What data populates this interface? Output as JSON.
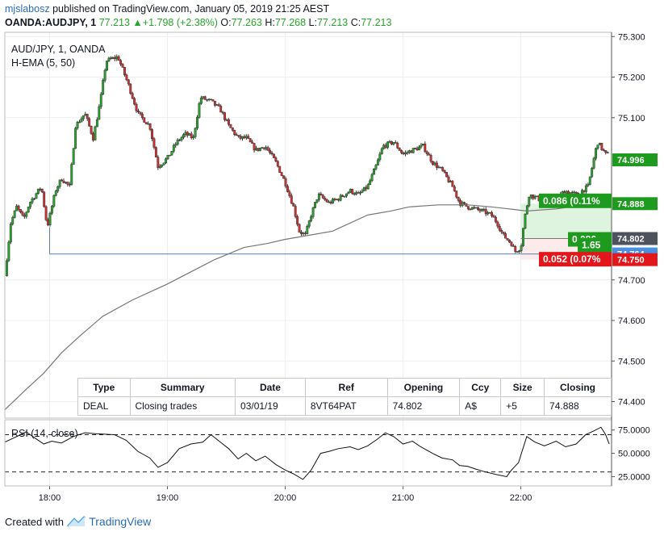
{
  "header": {
    "author": "mjslabosz",
    "published_text": "published on TradingView.com, January 05, 2019 21:25 AEST",
    "symbol": "OANDA:AUDJPY, 1",
    "last": "77.213",
    "change": "+1.798 (+2.38%)",
    "o_label": "O:",
    "o_value": "77.263",
    "h_label": "H:",
    "h_value": "77.268",
    "l_label": "L:",
    "l_value": "77.213",
    "c_label": "C:",
    "c_value": "77.213"
  },
  "legend": {
    "symbol": "AUD/JPY, 1, OANDA",
    "indicator": "H-EMA (5, 50)",
    "rsi": "RSI (14, close)"
  },
  "colors": {
    "up": "#26a62a",
    "down": "#d32f2f",
    "candle_outline": "#333333",
    "ema": "#777777",
    "trend_line": "#5b7fb0",
    "grid": "#eceff2",
    "green_label": "#1e9b1e",
    "red_label": "#e3161b",
    "blue_label": "#4a90e2",
    "grey_label": "#4c525e"
  },
  "chart_data": [
    {
      "type": "candlestick",
      "title": "AUD/JPY, 1, OANDA",
      "x": "time",
      "x_ticks": [
        "18:00",
        "19:00",
        "20:00",
        "21:00",
        "22:00"
      ],
      "y_ticks": [
        "75.300",
        "75.200",
        "75.100",
        "74.700",
        "74.600",
        "74.500",
        "74.400"
      ],
      "ylim": [
        74.3592,
        75.3105
      ],
      "close_path": [
        [
          17.62,
          74.71
        ],
        [
          17.67,
          74.84
        ],
        [
          17.72,
          74.88
        ],
        [
          17.78,
          74.85
        ],
        [
          17.83,
          74.89
        ],
        [
          17.93,
          74.93
        ],
        [
          17.98,
          74.83
        ],
        [
          18.05,
          74.92
        ],
        [
          18.1,
          74.95
        ],
        [
          18.17,
          74.93
        ],
        [
          18.22,
          75.08
        ],
        [
          18.3,
          75.11
        ],
        [
          18.37,
          75.05
        ],
        [
          18.43,
          75.14
        ],
        [
          18.48,
          75.24
        ],
        [
          18.58,
          75.25
        ],
        [
          18.67,
          75.18
        ],
        [
          18.75,
          75.11
        ],
        [
          18.85,
          75.08
        ],
        [
          18.92,
          74.98
        ],
        [
          19.0,
          75.0
        ],
        [
          19.08,
          75.04
        ],
        [
          19.15,
          75.06
        ],
        [
          19.22,
          75.05
        ],
        [
          19.28,
          75.15
        ],
        [
          19.37,
          75.14
        ],
        [
          19.45,
          75.12
        ],
        [
          19.52,
          75.08
        ],
        [
          19.6,
          75.05
        ],
        [
          19.67,
          75.05
        ],
        [
          19.75,
          75.02
        ],
        [
          19.83,
          75.03
        ],
        [
          19.92,
          74.99
        ],
        [
          20.0,
          74.94
        ],
        [
          20.07,
          74.88
        ],
        [
          20.12,
          74.82
        ],
        [
          20.17,
          74.81
        ],
        [
          20.22,
          74.86
        ],
        [
          20.28,
          74.91
        ],
        [
          20.37,
          74.89
        ],
        [
          20.45,
          74.9
        ],
        [
          20.55,
          74.92
        ],
        [
          20.62,
          74.91
        ],
        [
          20.7,
          74.93
        ],
        [
          20.77,
          74.98
        ],
        [
          20.83,
          75.03
        ],
        [
          20.92,
          75.04
        ],
        [
          21.0,
          75.01
        ],
        [
          21.08,
          75.02
        ],
        [
          21.17,
          75.03
        ],
        [
          21.25,
          74.99
        ],
        [
          21.33,
          74.97
        ],
        [
          21.42,
          74.93
        ],
        [
          21.48,
          74.89
        ],
        [
          21.55,
          74.88
        ],
        [
          21.67,
          74.87
        ],
        [
          21.75,
          74.86
        ],
        [
          21.8,
          74.84
        ],
        [
          21.85,
          74.81
        ],
        [
          21.92,
          74.79
        ],
        [
          21.95,
          74.77
        ],
        [
          22.0,
          74.78
        ],
        [
          22.03,
          74.85
        ],
        [
          22.07,
          74.91
        ],
        [
          22.15,
          74.9
        ],
        [
          22.22,
          74.88
        ],
        [
          22.28,
          74.89
        ],
        [
          22.37,
          74.92
        ],
        [
          22.47,
          74.91
        ],
        [
          22.57,
          74.93
        ],
        [
          22.65,
          75.04
        ],
        [
          22.72,
          75.01
        ]
      ],
      "series": [
        {
          "name": "H-EMA (5, 50)",
          "type": "line",
          "points": [
            [
              17.62,
              74.38
            ],
            [
              17.8,
              74.43
            ],
            [
              17.95,
              74.47
            ],
            [
              18.1,
              74.52
            ],
            [
              18.25,
              74.56
            ],
            [
              18.45,
              74.61
            ],
            [
              18.7,
              74.65
            ],
            [
              19.0,
              74.69
            ],
            [
              19.2,
              74.72
            ],
            [
              19.4,
              74.75
            ],
            [
              19.65,
              74.78
            ],
            [
              19.85,
              74.79
            ],
            [
              20.0,
              74.8
            ],
            [
              20.2,
              74.81
            ],
            [
              20.4,
              74.82
            ],
            [
              20.7,
              74.86
            ],
            [
              20.9,
              74.87
            ],
            [
              21.05,
              74.88
            ],
            [
              21.3,
              74.885
            ],
            [
              21.55,
              74.885
            ],
            [
              21.75,
              74.88
            ],
            [
              21.9,
              74.875
            ],
            [
              22.05,
              74.87
            ],
            [
              22.3,
              74.875
            ],
            [
              22.55,
              74.885
            ],
            [
              22.77,
              74.895
            ]
          ]
        }
      ],
      "horizontal_lines": [
        {
          "y": 74.764,
          "from_x": 18.0,
          "to_x": 22.77,
          "name": "trade-level-line"
        },
        {
          "y": 74.802,
          "from_x": 22.0,
          "to_x": 22.77,
          "name": "opening-level-line"
        }
      ],
      "price_labels": [
        {
          "value": "74.996",
          "y": 74.996,
          "color": "#1e9b1e"
        },
        {
          "value": "74.888",
          "y": 74.888,
          "color": "#1e9b1e"
        },
        {
          "value": "74.802",
          "y": 74.802,
          "color": "#4c525e"
        },
        {
          "value": "74.764",
          "y": 74.764,
          "color": "#4a90e2"
        },
        {
          "value": "74.750",
          "y": 74.75,
          "color": "#e3161b"
        }
      ],
      "trade_labels": [
        {
          "text": "0.086 (0.11%",
          "y": 74.895,
          "color": "#1e9b1e"
        },
        {
          "text": "0.086 ~",
          "y": 74.8,
          "color": "#1e9b1e"
        },
        {
          "text": "1.65",
          "y": 74.786,
          "color": "#1e9b1e"
        },
        {
          "text": "0.052 (0.07%",
          "y": 74.751,
          "color": "#e3161b"
        }
      ]
    },
    {
      "type": "line",
      "title": "RSI (14, close)",
      "y_ticks": [
        "75.0000",
        "50.0000",
        "25.0000"
      ],
      "ylim": [
        15,
        86
      ],
      "levels": [
        70,
        30
      ],
      "series": [
        {
          "name": "RSI (14, close)",
          "points": [
            [
              17.62,
              62
            ],
            [
              17.72,
              68
            ],
            [
              17.8,
              73
            ],
            [
              17.88,
              66
            ],
            [
              17.95,
              60
            ],
            [
              18.02,
              63
            ],
            [
              18.1,
              61
            ],
            [
              18.2,
              68
            ],
            [
              18.3,
              72
            ],
            [
              18.4,
              71
            ],
            [
              18.55,
              70
            ],
            [
              18.65,
              64
            ],
            [
              18.75,
              52
            ],
            [
              18.85,
              45
            ],
            [
              18.92,
              35
            ],
            [
              19.0,
              40
            ],
            [
              19.1,
              55
            ],
            [
              19.2,
              60
            ],
            [
              19.3,
              62
            ],
            [
              19.37,
              70
            ],
            [
              19.45,
              62
            ],
            [
              19.52,
              55
            ],
            [
              19.6,
              44
            ],
            [
              19.67,
              50
            ],
            [
              19.75,
              42
            ],
            [
              19.83,
              47
            ],
            [
              19.92,
              38
            ],
            [
              20.0,
              32
            ],
            [
              20.07,
              28
            ],
            [
              20.15,
              22
            ],
            [
              20.22,
              32
            ],
            [
              20.3,
              50
            ],
            [
              20.37,
              52
            ],
            [
              20.45,
              55
            ],
            [
              20.55,
              57
            ],
            [
              20.62,
              54
            ],
            [
              20.7,
              58
            ],
            [
              20.78,
              65
            ],
            [
              20.85,
              72
            ],
            [
              20.92,
              68
            ],
            [
              21.0,
              60
            ],
            [
              21.08,
              63
            ],
            [
              21.15,
              57
            ],
            [
              21.25,
              50
            ],
            [
              21.33,
              45
            ],
            [
              21.42,
              43
            ],
            [
              21.48,
              37
            ],
            [
              21.55,
              36
            ],
            [
              21.62,
              33
            ],
            [
              21.7,
              30
            ],
            [
              21.8,
              27
            ],
            [
              21.88,
              25
            ],
            [
              21.92,
              32
            ],
            [
              21.98,
              40
            ],
            [
              22.05,
              68
            ],
            [
              22.12,
              62
            ],
            [
              22.2,
              58
            ],
            [
              22.3,
              63
            ],
            [
              22.38,
              57
            ],
            [
              22.47,
              60
            ],
            [
              22.55,
              70
            ],
            [
              22.62,
              74
            ],
            [
              22.68,
              78
            ],
            [
              22.72,
              70
            ],
            [
              22.75,
              60
            ]
          ]
        }
      ]
    }
  ],
  "table": {
    "headers": [
      "Type",
      "Summary",
      "Date",
      "Ref",
      "Opening",
      "Ccy",
      "Size",
      "Closing"
    ],
    "rows": [
      [
        "DEAL",
        "Closing trades",
        "03/01/19",
        "8VT64PAT",
        "74.802",
        "A$",
        "+5",
        "74.888"
      ]
    ]
  },
  "footer": {
    "created_with": "Created with",
    "brand": "TradingView"
  }
}
